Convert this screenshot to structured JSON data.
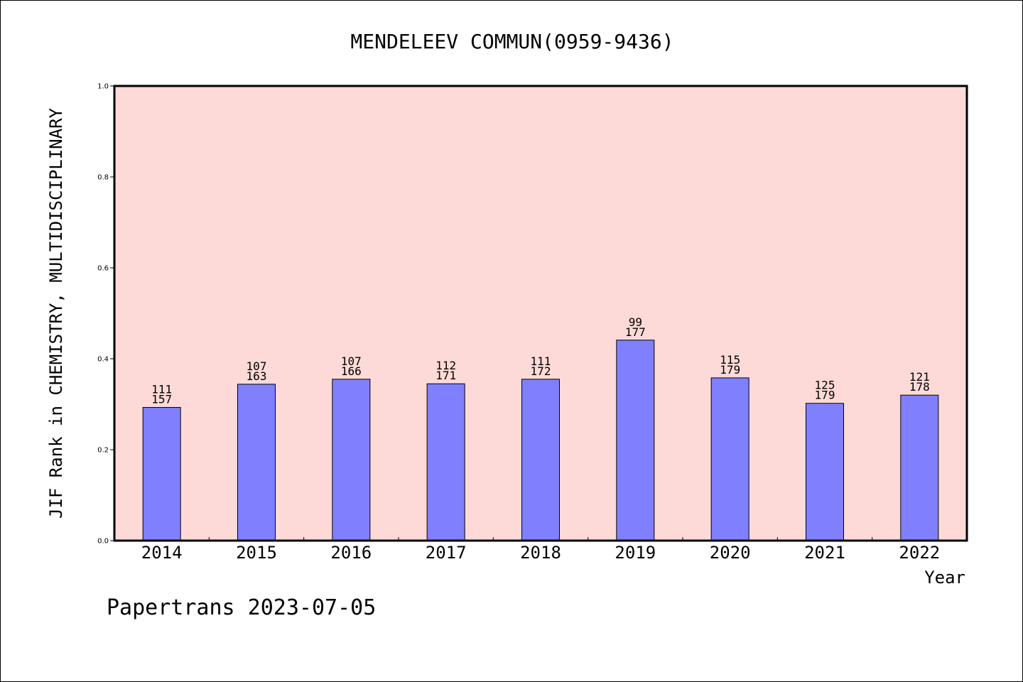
{
  "chart_data": {
    "type": "bar",
    "title": "MENDELEEV COMMUN(0959-9436)",
    "xlabel": "Year",
    "ylabel": "JIF Rank in CHEMISTRY, MULTIDISCIPLINARY",
    "categories": [
      "2014",
      "2015",
      "2016",
      "2017",
      "2018",
      "2019",
      "2020",
      "2021",
      "2022"
    ],
    "values": [
      0.293,
      0.344,
      0.355,
      0.345,
      0.355,
      0.441,
      0.358,
      0.302,
      0.32
    ],
    "rank": [
      "111",
      "107",
      "107",
      "112",
      "111",
      "99",
      "115",
      "125",
      "121"
    ],
    "total": [
      "157",
      "163",
      "166",
      "171",
      "172",
      "177",
      "179",
      "179",
      "178"
    ],
    "ylim": [
      0,
      1.0
    ],
    "yticks": [
      "0.0",
      "0.2",
      "0.4",
      "0.6",
      "0.8",
      "1.0"
    ],
    "grid": false,
    "bar_color": "#8080ff",
    "plot_background": "#fddad7"
  },
  "footer": "Papertrans 2023-07-05"
}
